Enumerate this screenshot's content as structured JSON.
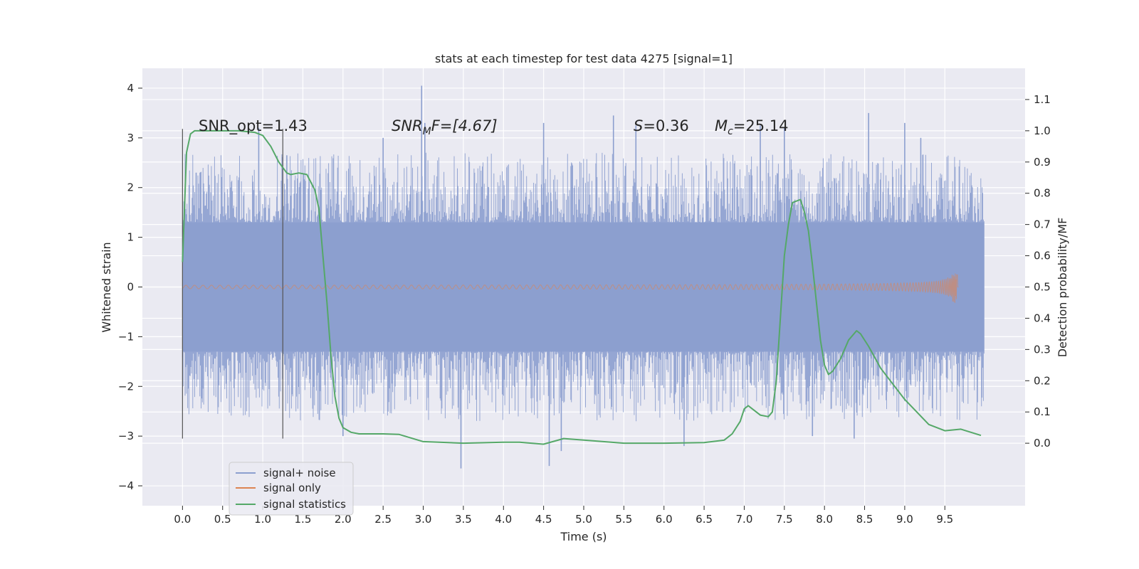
{
  "chart_data": {
    "type": "line",
    "title": "stats at each timestep for test data 4275 [signal=1]",
    "xlabel": "Time (s)",
    "ylabel": "Whitened strain",
    "ylabel_right": "Detection probability/MF",
    "xlim": [
      -0.5,
      10.5
    ],
    "ylim": [
      -4.4,
      4.4
    ],
    "ylim_right": [
      -0.2,
      1.2
    ],
    "x_ticks": [
      0.0,
      0.5,
      1.0,
      1.5,
      2.0,
      2.5,
      3.0,
      3.5,
      4.0,
      4.5,
      5.0,
      5.5,
      6.0,
      6.5,
      7.0,
      7.5,
      8.0,
      8.5,
      9.0,
      9.5
    ],
    "x_tick_labels": [
      "0.0",
      "0.5",
      "1.0",
      "1.5",
      "2.0",
      "2.5",
      "3.0",
      "3.5",
      "4.0",
      "4.5",
      "5.0",
      "5.5",
      "6.0",
      "6.5",
      "7.0",
      "7.5",
      "8.0",
      "8.5",
      "9.0",
      "9.5"
    ],
    "y_ticks": [
      -4,
      -3,
      -2,
      -1,
      0,
      1,
      2,
      3,
      4
    ],
    "y_tick_labels": [
      "−4",
      "−3",
      "−2",
      "−1",
      "0",
      "1",
      "2",
      "3",
      "4"
    ],
    "y_right_ticks": [
      0.0,
      0.1,
      0.2,
      0.3,
      0.4,
      0.5,
      0.6,
      0.7,
      0.8,
      0.9,
      1.0,
      1.1
    ],
    "y_right_tick_labels": [
      "0.0",
      "0.1",
      "0.2",
      "0.3",
      "0.4",
      "0.5",
      "0.6",
      "0.7",
      "0.8",
      "0.9",
      "1.0",
      "1.1"
    ],
    "grid": true,
    "legend_position": "lower-left",
    "background": "#eaeaf2",
    "annotations": {
      "snr_opt": "SNR_opt=1.43",
      "snr_mf_prefix": "SNR",
      "snr_mf_sub": "M",
      "snr_mf_suffix": "F=[4.67]",
      "s_italic": "S",
      "s_value": "=0.36",
      "mc_italic": "M",
      "mc_sub": "c",
      "mc_value": "=25.14"
    },
    "vlines": [
      {
        "x": 0.0,
        "ymin": -3.05,
        "ymax": 3.18
      },
      {
        "x": 1.25,
        "ymin": -3.05,
        "ymax": 3.18
      }
    ],
    "series": [
      {
        "name": "signal+ noise",
        "color": "#8c9fcf",
        "axis": "left",
        "kind": "noisy-strain",
        "x_range": [
          0.0,
          9.99
        ],
        "core_band": [
          -1.3,
          1.3
        ],
        "typical_envelope": [
          -2.1,
          2.1
        ],
        "peaks": [
          {
            "x": 0.17,
            "y": 2.3
          },
          {
            "x": 0.95,
            "y": 3.2
          },
          {
            "x": 1.3,
            "y": 2.65
          },
          {
            "x": 2.0,
            "y": -3.0
          },
          {
            "x": 2.5,
            "y": 3.0
          },
          {
            "x": 2.98,
            "y": 4.05
          },
          {
            "x": 3.02,
            "y": 3.3
          },
          {
            "x": 3.47,
            "y": -3.65
          },
          {
            "x": 4.5,
            "y": 3.3
          },
          {
            "x": 4.57,
            "y": -3.6
          },
          {
            "x": 4.72,
            "y": -3.3
          },
          {
            "x": 5.37,
            "y": 3.45
          },
          {
            "x": 5.65,
            "y": 3.25
          },
          {
            "x": 6.25,
            "y": -3.2
          },
          {
            "x": 7.2,
            "y": 3.25
          },
          {
            "x": 7.5,
            "y": 3.2
          },
          {
            "x": 7.85,
            "y": -3.0
          },
          {
            "x": 8.37,
            "y": -3.05
          },
          {
            "x": 8.55,
            "y": 3.5
          },
          {
            "x": 9.0,
            "y": 3.3
          },
          {
            "x": 9.2,
            "y": 3.0
          }
        ]
      },
      {
        "name": "signal only",
        "color": "#dd8452",
        "axis": "left",
        "kind": "chirp",
        "x_range": [
          0.0,
          9.67
        ],
        "merger_x": 9.65,
        "peak_amplitude": 0.32
      },
      {
        "name": "signal statistics",
        "color": "#55a868",
        "axis": "right",
        "kind": "line",
        "x": [
          0.0,
          0.05,
          0.1,
          0.15,
          0.2,
          0.3,
          0.5,
          0.7,
          0.9,
          1.0,
          1.1,
          1.2,
          1.3,
          1.35,
          1.45,
          1.55,
          1.65,
          1.7,
          1.75,
          1.8,
          1.85,
          1.9,
          1.95,
          2.0,
          2.1,
          2.2,
          2.5,
          2.7,
          3.0,
          3.5,
          4.0,
          4.2,
          4.5,
          4.75,
          5.0,
          5.5,
          6.0,
          6.5,
          6.75,
          6.85,
          6.95,
          7.0,
          7.05,
          7.1,
          7.2,
          7.3,
          7.35,
          7.4,
          7.45,
          7.5,
          7.55,
          7.6,
          7.7,
          7.75,
          7.8,
          7.85,
          7.9,
          7.95,
          8.0,
          8.05,
          8.1,
          8.2,
          8.3,
          8.4,
          8.45,
          8.55,
          8.7,
          9.0,
          9.3,
          9.5,
          9.7,
          9.95
        ],
        "y": [
          0.58,
          0.93,
          0.99,
          1.0,
          1.0,
          1.0,
          1.0,
          1.0,
          0.995,
          0.985,
          0.95,
          0.9,
          0.865,
          0.86,
          0.865,
          0.86,
          0.81,
          0.75,
          0.6,
          0.45,
          0.28,
          0.15,
          0.08,
          0.05,
          0.035,
          0.03,
          0.03,
          0.028,
          0.005,
          0.0,
          0.003,
          0.003,
          -0.003,
          0.015,
          0.01,
          0.0,
          0.0,
          0.002,
          0.01,
          0.03,
          0.07,
          0.11,
          0.12,
          0.11,
          0.09,
          0.085,
          0.1,
          0.2,
          0.4,
          0.6,
          0.7,
          0.77,
          0.78,
          0.74,
          0.68,
          0.57,
          0.45,
          0.33,
          0.25,
          0.22,
          0.23,
          0.27,
          0.33,
          0.36,
          0.35,
          0.31,
          0.24,
          0.14,
          0.06,
          0.04,
          0.045,
          0.025
        ]
      }
    ]
  }
}
